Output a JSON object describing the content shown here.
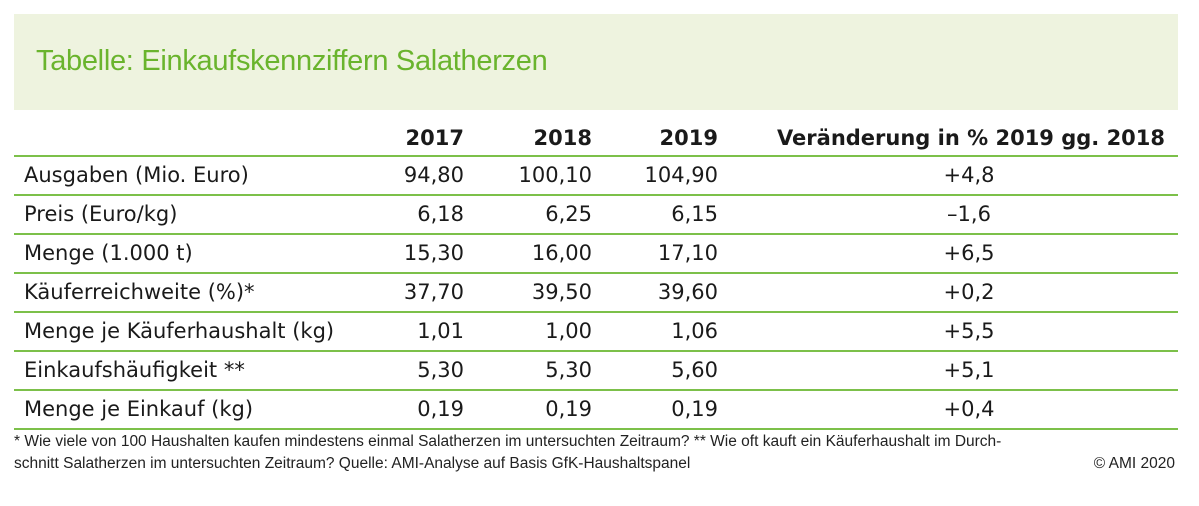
{
  "title": "Tabelle: Einkaufskennziffern Salatherzen",
  "table": {
    "headers": [
      "",
      "2017",
      "2018",
      "2019",
      "Veränderung in % 2019 gg. 2018"
    ],
    "rows": [
      {
        "label": "Ausgaben (Mio. Euro)",
        "v2017": "94,80",
        "v2018": "100,10",
        "v2019": "104,90",
        "change": "+4,8"
      },
      {
        "label": "Preis (Euro/kg)",
        "v2017": "6,18",
        "v2018": "6,25",
        "v2019": "6,15",
        "change": "–1,6"
      },
      {
        "label": "Menge (1.000 t)",
        "v2017": "15,30",
        "v2018": "16,00",
        "v2019": "17,10",
        "change": "+6,5"
      },
      {
        "label": "Käuferreichweite (%)*",
        "v2017": "37,70",
        "v2018": "39,50",
        "v2019": "39,60",
        "change": "+0,2"
      },
      {
        "label": "Menge je Käuferhaushalt (kg)",
        "v2017": "1,01",
        "v2018": "1,00",
        "v2019": "1,06",
        "change": "+5,5"
      },
      {
        "label": "Einkaufshäufigkeit **",
        "v2017": "5,30",
        "v2018": "5,30",
        "v2019": "5,60",
        "change": "+5,1"
      },
      {
        "label": "Menge je Einkauf (kg)",
        "v2017": "0,19",
        "v2018": "0,19",
        "v2019": "0,19",
        "change": "+0,4"
      }
    ]
  },
  "footnote": {
    "line1": "* Wie viele von 100 Haushalten kaufen mindestens einmal Salatherzen im untersuchten Zeitraum? ** Wie oft kauft ein Käuferhaushalt im Durch-",
    "line2": "schnitt Salatherzen im untersuchten Zeitraum? Quelle: AMI-Analyse auf Basis GfK-Haushaltspanel",
    "copyright": "© AMI 2020"
  },
  "colors": {
    "accent": "#7cc04a",
    "title": "#6ab42d",
    "band": "#eef3df"
  }
}
